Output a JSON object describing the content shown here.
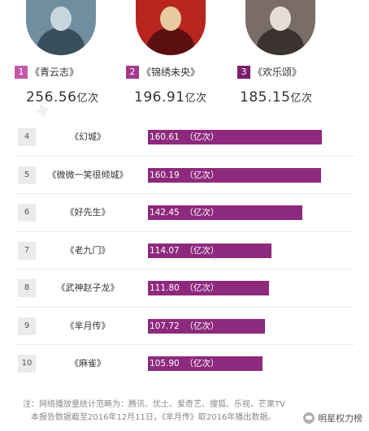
{
  "chart_data": {
    "type": "bar",
    "top3": [
      {
        "rank": "1",
        "title": "《青云志》",
        "value": 256.56,
        "value_text": "256.56",
        "unit": "亿次",
        "badge_color": "#c25aa6"
      },
      {
        "rank": "2",
        "title": "《锦绣未央》",
        "value": 196.91,
        "value_text": "196.91",
        "unit": "亿次",
        "badge_color": "#a23a8a"
      },
      {
        "rank": "3",
        "title": "《欢乐颂》",
        "value": 185.15,
        "value_text": "185.15",
        "unit": "亿次",
        "badge_color": "#7a1f6c"
      }
    ],
    "rows": [
      {
        "rank": "4",
        "title": "《幻城》",
        "value": 160.61,
        "label": "160.61  （亿次）"
      },
      {
        "rank": "5",
        "title": "《微微一笑很倾城》",
        "value": 160.19,
        "label": "160.19  （亿次）"
      },
      {
        "rank": "6",
        "title": "《好先生》",
        "value": 142.45,
        "label": "142.45  （亿次）"
      },
      {
        "rank": "7",
        "title": "《老九门》",
        "value": 114.07,
        "label": "114.07  （亿次）"
      },
      {
        "rank": "8",
        "title": "《武神赵子龙》",
        "value": 111.8,
        "label": "111.80  （亿次）"
      },
      {
        "rank": "9",
        "title": "《芈月传》",
        "value": 107.72,
        "label": "107.72  （亿次）"
      },
      {
        "rank": "10",
        "title": "《麻雀》",
        "value": 105.9,
        "label": "105.90  （亿次）"
      }
    ],
    "bar_color": "#8e2a7d"
  },
  "footer": {
    "note_line1": "注：网络播放量统计范畴为：腾讯、优土、爱奇艺、搜狐、乐视、芒果TV",
    "note_line2": "本报告数据截至2016年12月11日，《芈月传》取2016年播出数据。",
    "brand": "明星权力榜"
  },
  "avatar_colors": [
    [
      "#6f8fa0",
      "#c9d6de",
      "#3a4f5c"
    ],
    [
      "#b8251f",
      "#e8c9a0",
      "#5b0f10"
    ],
    [
      "#7a6d66",
      "#e6ddd6",
      "#3b3330"
    ]
  ]
}
